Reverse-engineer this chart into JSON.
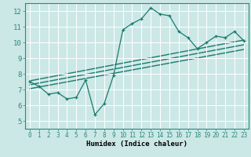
{
  "xlabel": "Humidex (Indice chaleur)",
  "bg_color": "#cce8e6",
  "line_color": "#1a7a6e",
  "grid_color": "#ffffff",
  "xlim": [
    -0.5,
    23.5
  ],
  "ylim": [
    4.5,
    12.5
  ],
  "xticks": [
    0,
    1,
    2,
    3,
    4,
    5,
    6,
    7,
    8,
    9,
    10,
    11,
    12,
    13,
    14,
    15,
    16,
    17,
    18,
    19,
    20,
    21,
    22,
    23
  ],
  "yticks": [
    5,
    6,
    7,
    8,
    9,
    10,
    11,
    12
  ],
  "curve1_x": [
    0,
    1,
    2,
    3,
    4,
    5,
    6,
    7,
    8,
    9,
    10,
    11,
    12,
    13,
    14,
    15,
    16,
    17,
    18,
    19,
    20,
    21,
    22,
    23
  ],
  "curve1_y": [
    7.5,
    7.2,
    6.7,
    6.8,
    6.4,
    6.5,
    7.6,
    5.4,
    6.1,
    7.9,
    10.8,
    11.2,
    11.5,
    12.2,
    11.8,
    11.7,
    10.7,
    10.3,
    9.6,
    10.0,
    10.4,
    10.3,
    10.7,
    10.1
  ],
  "line2_x": [
    0,
    23
  ],
  "line2_y": [
    7.55,
    10.15
  ],
  "line3_x": [
    0,
    23
  ],
  "line3_y": [
    7.3,
    9.85
  ],
  "line4_x": [
    0,
    23
  ],
  "line4_y": [
    7.05,
    9.55
  ]
}
